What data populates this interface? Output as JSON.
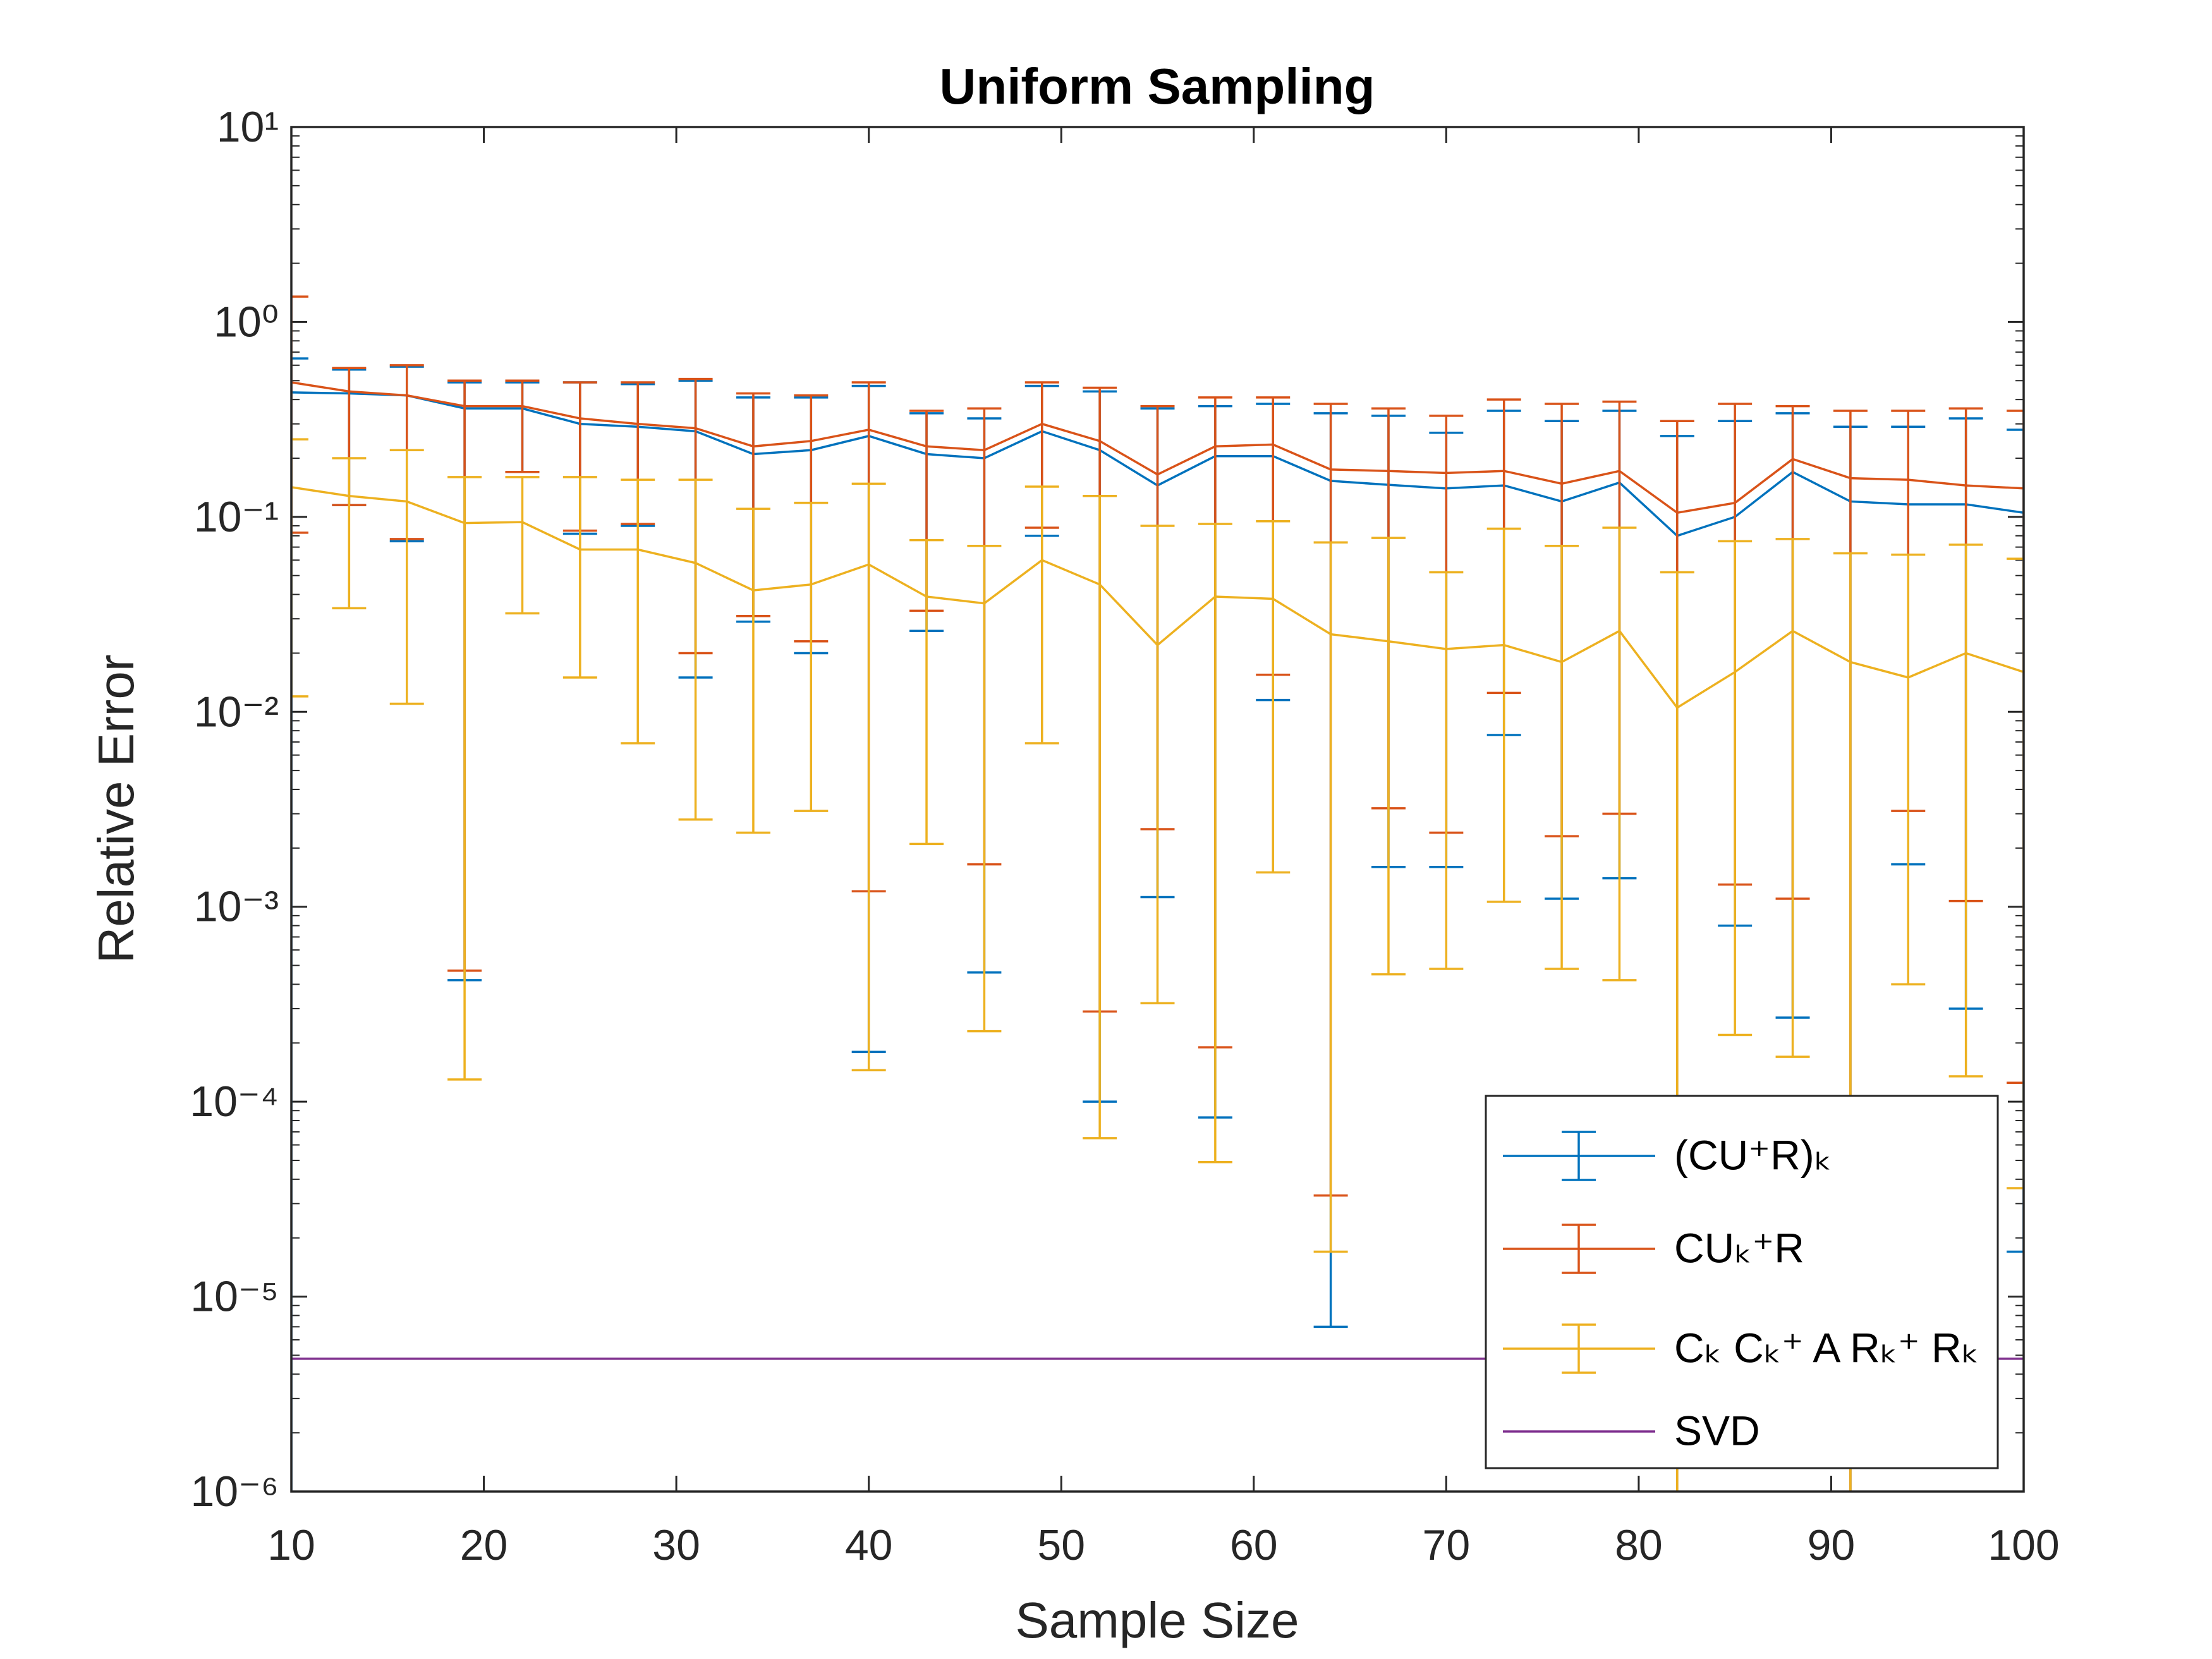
{
  "chart_data": {
    "type": "errorbar",
    "title": "Uniform Sampling",
    "xlabel": "Sample Size",
    "ylabel": "Relative Error",
    "yscale": "log",
    "legend": "lower right",
    "x": [
      10,
      13,
      16,
      19,
      22,
      25,
      28,
      31,
      34,
      37,
      40,
      43,
      46,
      49,
      52,
      55,
      58,
      61,
      64,
      67,
      70,
      73,
      76,
      79,
      82,
      85,
      88,
      91,
      94,
      97,
      100
    ],
    "xlim": [
      10,
      100
    ],
    "xticks": [
      10,
      20,
      30,
      40,
      50,
      60,
      70,
      80,
      90,
      100
    ],
    "ylim": [
      1e-06,
      10
    ],
    "yticks": [
      {
        "value": 1e-06,
        "label": "10⁻⁶"
      },
      {
        "value": 1e-05,
        "label": "10⁻⁵"
      },
      {
        "value": 0.0001,
        "label": "10⁻⁴"
      },
      {
        "value": 0.001,
        "label": "10⁻³"
      },
      {
        "value": 0.01,
        "label": "10⁻²"
      },
      {
        "value": 0.1,
        "label": "10⁻¹"
      },
      {
        "value": 1,
        "label": "10⁰"
      },
      {
        "value": 10,
        "label": "10¹"
      }
    ],
    "series": [
      {
        "name": "(CU⁺R)ₖ",
        "color": "#0072bd",
        "values": [
          0.435,
          0.43,
          0.42,
          0.36,
          0.36,
          0.3,
          0.29,
          0.275,
          0.21,
          0.22,
          0.26,
          0.21,
          0.2,
          0.275,
          0.22,
          0.145,
          0.205,
          0.205,
          0.153,
          0.146,
          0.14,
          0.145,
          0.12,
          0.15,
          0.08,
          0.1,
          0.17,
          0.12,
          0.116,
          0.116,
          0.105
        ],
        "low": [
          null,
          0.115,
          0.075,
          0.00042,
          0.17,
          0.082,
          0.09,
          0.015,
          0.029,
          0.02,
          0.00018,
          0.026,
          0.00046,
          0.08,
          0.0001,
          0.00112,
          8.3e-05,
          0.0115,
          7e-06,
          0.0016,
          0.0016,
          0.0076,
          0.0011,
          0.0014,
          null,
          0.0008,
          0.00027,
          null,
          0.00165,
          0.0003,
          1.7e-05
        ],
        "high": [
          0.65,
          0.57,
          0.59,
          0.49,
          0.49,
          0.49,
          0.48,
          0.5,
          0.41,
          0.41,
          0.47,
          0.34,
          0.32,
          0.47,
          0.44,
          0.36,
          0.37,
          0.38,
          0.34,
          0.33,
          0.27,
          0.35,
          0.31,
          0.35,
          0.26,
          0.31,
          0.34,
          0.29,
          0.29,
          0.32,
          0.28
        ]
      },
      {
        "name": "CUₖ⁺R",
        "color": "#d95319",
        "values": [
          0.49,
          0.44,
          0.42,
          0.37,
          0.37,
          0.32,
          0.3,
          0.285,
          0.23,
          0.245,
          0.28,
          0.23,
          0.22,
          0.3,
          0.245,
          0.165,
          0.23,
          0.235,
          0.175,
          0.172,
          0.168,
          0.172,
          0.148,
          0.172,
          0.105,
          0.118,
          0.198,
          0.158,
          0.155,
          0.145,
          0.14
        ],
        "low": [
          0.083,
          0.115,
          0.077,
          0.00047,
          0.17,
          0.085,
          0.092,
          0.02,
          0.031,
          0.023,
          0.0012,
          0.033,
          0.00165,
          0.088,
          0.00029,
          0.0025,
          0.00019,
          0.0155,
          3.3e-05,
          0.0032,
          0.0024,
          0.0125,
          0.0023,
          0.003,
          null,
          0.0013,
          0.0011,
          null,
          0.0031,
          0.00107,
          0.000125
        ],
        "high": [
          1.35,
          0.58,
          0.6,
          0.5,
          0.5,
          0.49,
          0.49,
          0.51,
          0.43,
          0.42,
          0.49,
          0.35,
          0.36,
          0.49,
          0.46,
          0.37,
          0.41,
          0.41,
          0.38,
          0.36,
          0.33,
          0.4,
          0.38,
          0.39,
          0.31,
          0.38,
          0.37,
          0.35,
          0.35,
          0.36,
          0.35
        ]
      },
      {
        "name": "Cₖ Cₖ⁺ A Rₖ⁺ Rₖ",
        "color": "#edb120",
        "values": [
          0.142,
          0.128,
          0.12,
          0.093,
          0.094,
          0.068,
          0.068,
          0.058,
          0.042,
          0.045,
          0.057,
          0.039,
          0.036,
          0.06,
          0.045,
          0.022,
          0.039,
          0.038,
          0.025,
          0.023,
          0.021,
          0.022,
          0.018,
          0.026,
          0.0105,
          0.016,
          0.026,
          0.018,
          0.015,
          0.02,
          0.016
        ],
        "low": [
          0.012,
          0.034,
          0.011,
          0.00013,
          0.032,
          0.015,
          0.0069,
          0.0028,
          0.0024,
          0.0031,
          0.000145,
          0.0021,
          0.00023,
          0.0069,
          6.5e-05,
          0.00032,
          4.9e-05,
          0.0015,
          1.7e-05,
          0.00045,
          0.00048,
          0.00106,
          0.00048,
          0.00042,
          null,
          0.00022,
          0.00017,
          null,
          0.0004,
          0.000135,
          3.6e-05
        ],
        "high": [
          0.25,
          0.2,
          0.22,
          0.16,
          0.16,
          0.16,
          0.155,
          0.155,
          0.11,
          0.118,
          0.148,
          0.076,
          0.071,
          0.143,
          0.128,
          0.09,
          0.092,
          0.095,
          0.074,
          0.078,
          0.052,
          0.087,
          0.071,
          0.088,
          0.052,
          0.075,
          0.077,
          0.065,
          0.064,
          0.072,
          0.061
        ]
      },
      {
        "name": "SVD",
        "color": "#7e2f8e",
        "values": [
          4.8e-06,
          4.8e-06,
          4.8e-06,
          4.8e-06,
          4.8e-06,
          4.8e-06,
          4.8e-06,
          4.8e-06,
          4.8e-06,
          4.8e-06,
          4.8e-06,
          4.8e-06,
          4.8e-06,
          4.8e-06,
          4.8e-06,
          4.8e-06,
          4.8e-06,
          4.8e-06,
          4.8e-06,
          4.8e-06,
          4.8e-06,
          4.8e-06,
          4.8e-06,
          4.8e-06,
          4.8e-06,
          4.8e-06,
          4.8e-06,
          4.8e-06,
          4.8e-06,
          4.8e-06,
          4.8e-06
        ]
      }
    ]
  }
}
